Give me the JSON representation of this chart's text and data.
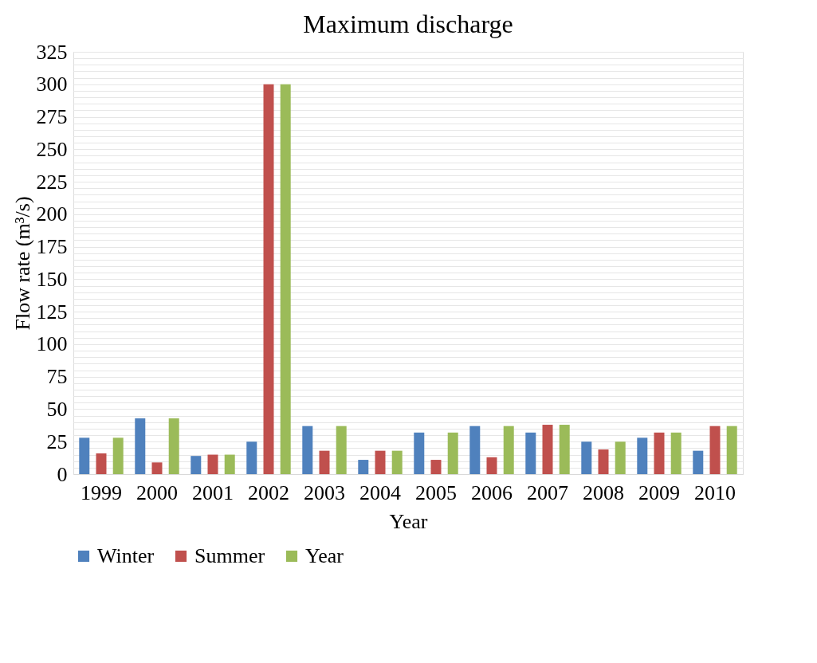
{
  "chart_data": {
    "type": "bar",
    "title": "Maximum discharge",
    "xlabel": "Year",
    "ylabel": "Flow rate (m³/s)",
    "categories": [
      "1999",
      "2000",
      "2001",
      "2002",
      "2003",
      "2004",
      "2005",
      "2006",
      "2007",
      "2008",
      "2009",
      "2010"
    ],
    "series": [
      {
        "name": "Winter",
        "color": "#4f81bd",
        "values": [
          28,
          43,
          14,
          25,
          37,
          11,
          32,
          37,
          32,
          25,
          28,
          18
        ]
      },
      {
        "name": "Summer",
        "color": "#c0504d",
        "values": [
          16,
          9,
          15,
          300,
          18,
          18,
          11,
          13,
          38,
          19,
          32,
          37
        ]
      },
      {
        "name": "Year",
        "color": "#9bbb59",
        "values": [
          28,
          43,
          15,
          300,
          37,
          18,
          32,
          37,
          38,
          25,
          32,
          37
        ]
      }
    ],
    "ylim": [
      0,
      325
    ],
    "yticks": [
      0,
      {
        "value": 5,
        "label": null
      },
      {
        "value": 10,
        "label": null
      },
      {
        "value": 15,
        "label": null
      },
      {
        "value": 20,
        "label": null
      },
      25,
      {
        "value": 30,
        "label": null
      },
      {
        "value": 35,
        "label": null
      },
      {
        "value": 40,
        "label": null
      },
      {
        "value": 45,
        "label": null
      },
      50,
      {
        "value": 55,
        "label": null
      },
      {
        "value": 60,
        "label": null
      },
      {
        "value": 65,
        "label": null
      },
      {
        "value": 70,
        "label": null
      },
      75,
      {
        "value": 80,
        "label": null
      },
      {
        "value": 85,
        "label": null
      },
      {
        "value": 90,
        "label": null
      },
      {
        "value": 95,
        "label": null
      },
      100,
      {
        "value": 105,
        "label": null
      },
      {
        "value": 110,
        "label": null
      },
      {
        "value": 115,
        "label": null
      },
      {
        "value": 120,
        "label": null
      },
      125,
      {
        "value": 130,
        "label": null
      },
      {
        "value": 135,
        "label": null
      },
      {
        "value": 140,
        "label": null
      },
      {
        "value": 145,
        "label": null
      },
      150,
      {
        "value": 155,
        "label": null
      },
      {
        "value": 160,
        "label": null
      },
      {
        "value": 165,
        "label": null
      },
      {
        "value": 170,
        "label": null
      },
      175,
      {
        "value": 180,
        "label": null
      },
      {
        "value": 185,
        "label": null
      },
      {
        "value": 190,
        "label": null
      },
      {
        "value": 195,
        "label": null
      },
      200,
      {
        "value": 205,
        "label": null
      },
      {
        "value": 210,
        "label": null
      },
      {
        "value": 215,
        "label": null
      },
      {
        "value": 220,
        "label": null
      },
      225,
      {
        "value": 230,
        "label": null
      },
      {
        "value": 235,
        "label": null
      },
      {
        "value": 240,
        "label": null
      },
      {
        "value": 245,
        "label": null
      },
      250,
      {
        "value": 255,
        "label": null
      },
      {
        "value": 260,
        "label": null
      },
      {
        "value": 265,
        "label": null
      },
      {
        "value": 270,
        "label": null
      },
      275,
      {
        "value": 280,
        "label": null
      },
      {
        "value": 285,
        "label": null
      },
      {
        "value": 290,
        "label": null
      },
      {
        "value": 295,
        "label": null
      },
      300,
      {
        "value": 305,
        "label": null
      },
      {
        "value": 310,
        "label": null
      },
      {
        "value": 315,
        "label": null
      },
      {
        "value": 320,
        "label": null
      },
      325
    ],
    "grid": true,
    "legend": "bottom"
  }
}
